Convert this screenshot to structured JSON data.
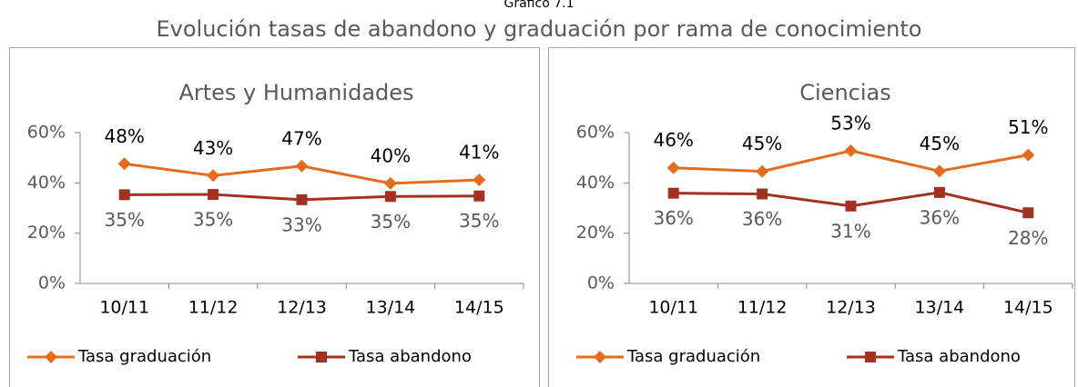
{
  "header": {
    "caption": "Gráfico 7.1",
    "title": "Evolución tasas de abandono y graduación por rama de conocimiento"
  },
  "chart_data": [
    {
      "type": "line",
      "title": "Artes y Humanidades",
      "categories": [
        "10/11",
        "11/12",
        "12/13",
        "13/14",
        "14/15"
      ],
      "series": [
        {
          "name": "Tasa graduación",
          "color": "#e46c1c",
          "marker": "diamond",
          "values": [
            47.6,
            42.9,
            46.7,
            39.8,
            41.2
          ],
          "value_labels": [
            "48%",
            "43%",
            "47%",
            "40%",
            "41%"
          ]
        },
        {
          "name": "Tasa abandono",
          "color": "#a2321f",
          "marker": "square",
          "values": [
            35.3,
            35.4,
            33.3,
            34.6,
            34.8
          ],
          "value_labels": [
            "35%",
            "35%",
            "33%",
            "35%",
            "35%"
          ]
        }
      ],
      "ylim": [
        0,
        60
      ],
      "yticks": [
        {
          "value": 0,
          "label": "0%"
        },
        {
          "value": 20,
          "label": "20%"
        },
        {
          "value": 40,
          "label": "40%"
        },
        {
          "value": 60,
          "label": "60%"
        }
      ],
      "grid": false,
      "legend": "bottom"
    },
    {
      "type": "line",
      "title": "Ciencias",
      "categories": [
        "10/11",
        "11/12",
        "12/13",
        "13/14",
        "14/15"
      ],
      "series": [
        {
          "name": "Tasa graduación",
          "color": "#e46c1c",
          "marker": "diamond",
          "values": [
            46.0,
            44.6,
            52.8,
            44.7,
            51.1
          ],
          "value_labels": [
            "46%",
            "45%",
            "53%",
            "45%",
            "51%"
          ]
        },
        {
          "name": "Tasa abandono",
          "color": "#a2321f",
          "marker": "square",
          "values": [
            35.9,
            35.6,
            30.8,
            36.2,
            28.1
          ],
          "value_labels": [
            "36%",
            "36%",
            "31%",
            "36%",
            "28%"
          ]
        }
      ],
      "ylim": [
        0,
        60
      ],
      "yticks": [
        {
          "value": 0,
          "label": "0%"
        },
        {
          "value": 20,
          "label": "20%"
        },
        {
          "value": 40,
          "label": "40%"
        },
        {
          "value": 60,
          "label": "60%"
        }
      ],
      "grid": false,
      "legend": "bottom"
    }
  ]
}
